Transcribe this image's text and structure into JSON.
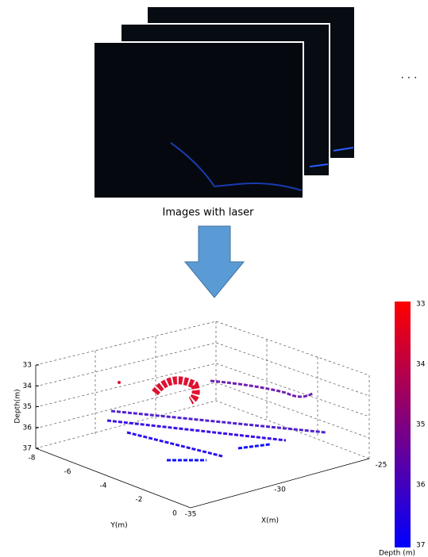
{
  "images": {
    "caption": "Images with laser",
    "more": ". . ."
  },
  "plot": {
    "z_label": "Depth(m)",
    "z_ticks": [
      33,
      34,
      35,
      36,
      37
    ],
    "y_label": "Y(m)",
    "y_ticks": [
      -8,
      -6,
      -4,
      -2,
      0
    ],
    "x_label": "X(m)",
    "x_ticks": [
      -35,
      -30,
      -25
    ],
    "colorbar": {
      "label": "Depth (m)",
      "ticks": [
        33,
        34,
        35,
        36,
        37
      ]
    }
  }
}
